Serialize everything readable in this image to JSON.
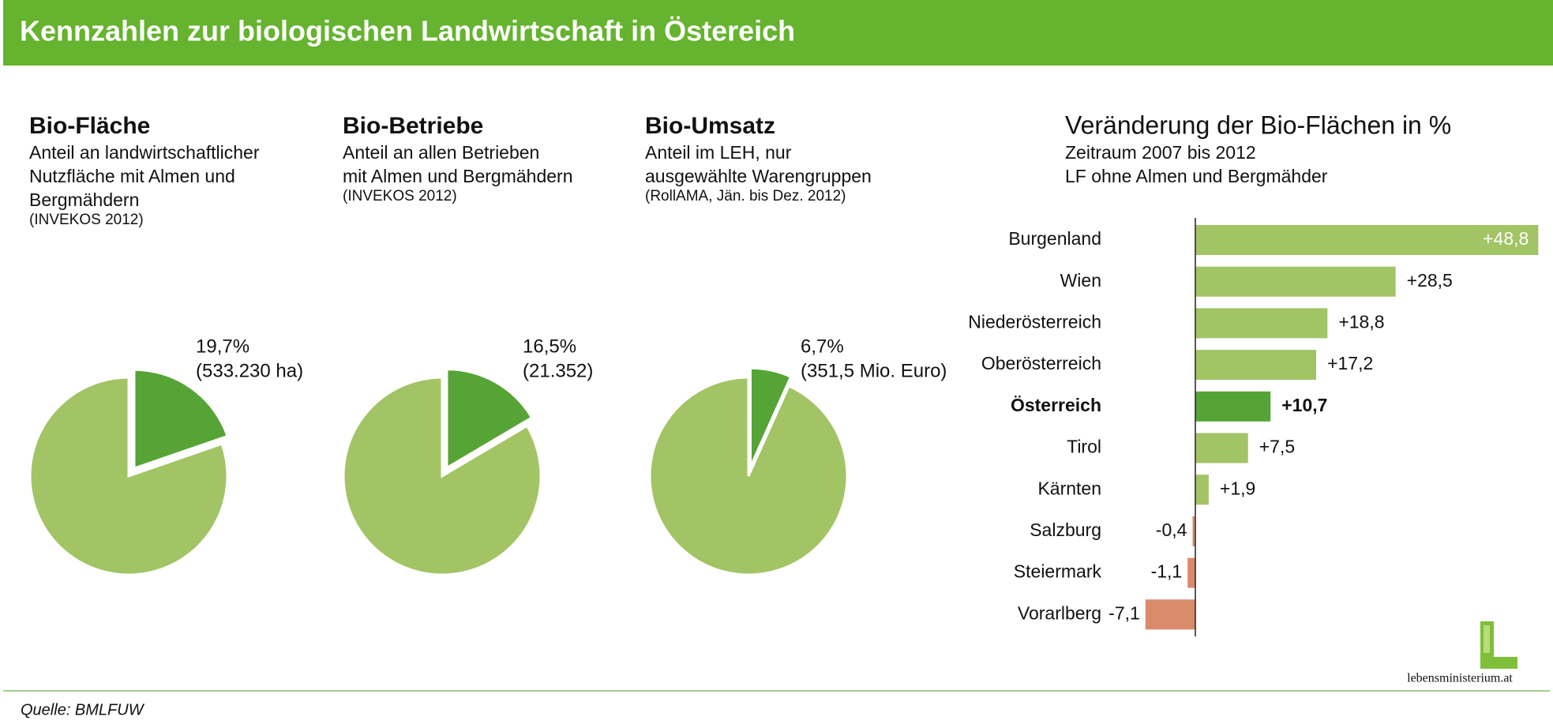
{
  "header": {
    "title": "Kennzahlen zur biologischen Landwirtschaft in Östereich"
  },
  "chart_data": [
    {
      "type": "pie",
      "title": "Bio-Fläche",
      "subtitle": [
        "Anteil an landwirtschaftlicher",
        "Nutzfläche mit Almen und",
        "Bergmähdern"
      ],
      "note": "(INVEKOS 2012)",
      "values": [
        19.7,
        80.3
      ],
      "value_labels": [
        "19,7%",
        null
      ],
      "annotation": "(533.230 ha)",
      "colors": [
        "#55a435",
        "#a2c465"
      ],
      "explode": [
        true,
        false
      ]
    },
    {
      "type": "pie",
      "title": "Bio-Betriebe",
      "subtitle": [
        "Anteil an allen Betrieben",
        "mit Almen und Bergmähdern"
      ],
      "note": "(INVEKOS 2012)",
      "values": [
        16.5,
        83.5
      ],
      "value_labels": [
        "16,5%",
        null
      ],
      "annotation": "(21.352)",
      "colors": [
        "#55a435",
        "#a2c465"
      ],
      "explode": [
        true,
        false
      ]
    },
    {
      "type": "pie",
      "title": "Bio-Umsatz",
      "subtitle": [
        "Anteil im LEH, nur",
        "ausgewählte Warengruppen"
      ],
      "note": "(RollAMA, Jän. bis Dez. 2012)",
      "values": [
        6.7,
        93.3
      ],
      "value_labels": [
        "6,7%",
        null
      ],
      "annotation": "(351,5 Mio. Euro)",
      "colors": [
        "#55a435",
        "#a2c465"
      ],
      "explode": [
        true,
        false
      ]
    },
    {
      "type": "bar",
      "orientation": "horizontal",
      "title": "Veränderung der Bio-Flächen in %",
      "subtitle": [
        "Zeitraum 2007 bis 2012",
        "LF ohne Almen und Bergmähder"
      ],
      "categories": [
        "Burgenland",
        "Wien",
        "Niederösterreich",
        "Oberösterreich",
        "Österreich",
        "Tirol",
        "Kärnten",
        "Salzburg",
        "Steiermark",
        "Vorarlberg"
      ],
      "values": [
        48.8,
        28.5,
        18.8,
        17.2,
        10.7,
        7.5,
        1.9,
        -0.4,
        -1.1,
        -7.1
      ],
      "value_labels": [
        "+48,8",
        "+28,5",
        "+18,8",
        "+17,2",
        "+10,7",
        "+7,5",
        "+1,9",
        "-0,4",
        "-1,1",
        "-7,1"
      ],
      "colors": [
        "#a2c465",
        "#a2c465",
        "#a2c465",
        "#a2c465",
        "#55a435",
        "#a2c465",
        "#a2c465",
        "#d98b6b",
        "#d98b6b",
        "#d98b6b"
      ],
      "bold": [
        false,
        false,
        false,
        false,
        true,
        false,
        false,
        false,
        false,
        false
      ],
      "xlim": [
        -10,
        50
      ]
    }
  ],
  "source": "Quelle: BMLFUW",
  "logo": "lebensministerium.at"
}
